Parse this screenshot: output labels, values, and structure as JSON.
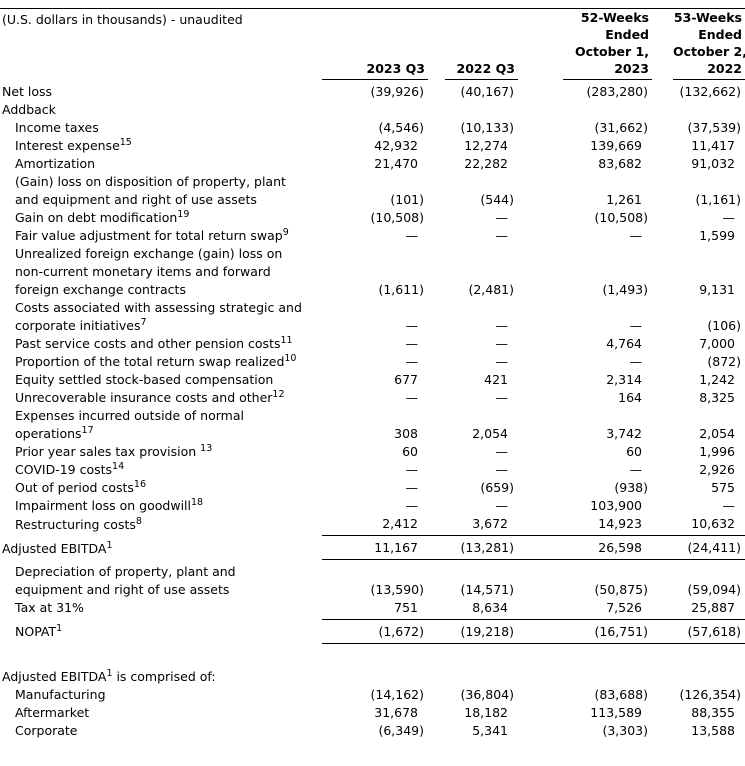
{
  "colors": {
    "background": "#ffffff",
    "text": "#000000",
    "rule": "#000000"
  },
  "table": {
    "unit_note": "(U.S. dollars in thousands) - unaudited",
    "columns": [
      {
        "lines": [
          "2023 Q3"
        ]
      },
      {
        "lines": [
          "2022 Q3"
        ]
      },
      {
        "lines": [
          "52-Weeks",
          "Ended",
          "October 1,",
          "2023"
        ]
      },
      {
        "lines": [
          "53-Weeks",
          "Ended",
          "October 2,",
          "2022"
        ]
      }
    ],
    "rows": [
      {
        "name": "net-loss",
        "indent": 0,
        "label_parts": [
          {
            "t": "Net loss"
          }
        ],
        "values": [
          "(39,926)",
          "(40,167)",
          "(283,280)",
          "(132,662)"
        ]
      },
      {
        "name": "addback",
        "indent": 0,
        "label_parts": [
          {
            "t": "Addback"
          }
        ],
        "values": [
          "",
          "",
          "",
          ""
        ]
      },
      {
        "name": "income-taxes",
        "indent": 1,
        "label_parts": [
          {
            "t": "Income taxes"
          }
        ],
        "values": [
          "(4,546)",
          "(10,133)",
          "(31,662)",
          "(37,539)"
        ]
      },
      {
        "name": "interest-expense",
        "indent": 1,
        "label_parts": [
          {
            "t": "Interest expense"
          },
          {
            "sup": "15"
          }
        ],
        "values": [
          "42,932",
          "12,274",
          "139,669",
          "11,417"
        ]
      },
      {
        "name": "amortization",
        "indent": 1,
        "label_parts": [
          {
            "t": "Amortization"
          }
        ],
        "values": [
          "21,470",
          "22,282",
          "83,682",
          "91,032"
        ]
      },
      {
        "name": "gain-loss-disposition",
        "indent": 1,
        "label_parts": [
          {
            "t": "(Gain) loss on disposition of property, plant"
          },
          {
            "br": true
          },
          {
            "t": "and equipment and right of use assets"
          }
        ],
        "values": [
          "(101)",
          "(544)",
          "1,261",
          "(1,161)"
        ]
      },
      {
        "name": "gain-debt-modification",
        "indent": 1,
        "label_parts": [
          {
            "t": "Gain on debt modification"
          },
          {
            "sup": "19"
          }
        ],
        "values": [
          "(10,508)",
          "—",
          "(10,508)",
          "—"
        ]
      },
      {
        "name": "fair-value-total-return-swap",
        "indent": 1,
        "label_parts": [
          {
            "t": "Fair value adjustment for total return swap"
          },
          {
            "sup": "9"
          }
        ],
        "values": [
          "—",
          "—",
          "—",
          "1,599"
        ]
      },
      {
        "name": "unrealized-fx",
        "indent": 1,
        "label_parts": [
          {
            "t": "Unrealized foreign exchange (gain) loss on"
          },
          {
            "br": true
          },
          {
            "t": "non-current monetary items and forward"
          },
          {
            "br": true
          },
          {
            "t": "foreign exchange contracts"
          }
        ],
        "values": [
          "(1,611)",
          "(2,481)",
          "(1,493)",
          "9,131"
        ]
      },
      {
        "name": "strategic-initiatives-costs",
        "indent": 1,
        "label_parts": [
          {
            "t": "Costs associated with assessing strategic and"
          },
          {
            "br": true
          },
          {
            "t": "corporate initiatives"
          },
          {
            "sup": "7"
          }
        ],
        "values": [
          "—",
          "—",
          "—",
          "(106)"
        ]
      },
      {
        "name": "past-service-pension-costs",
        "indent": 1,
        "label_parts": [
          {
            "t": "Past service costs and other pension costs"
          },
          {
            "sup": "11"
          }
        ],
        "values": [
          "—",
          "—",
          "4,764",
          "7,000"
        ]
      },
      {
        "name": "total-return-swap-realized",
        "indent": 1,
        "label_parts": [
          {
            "t": "Proportion of the total return swap realized"
          },
          {
            "sup": "10"
          }
        ],
        "values": [
          "—",
          "—",
          "—",
          "(872)"
        ]
      },
      {
        "name": "equity-settled-stock-comp",
        "indent": 1,
        "label_parts": [
          {
            "t": "Equity settled stock-based compensation"
          }
        ],
        "values": [
          "677",
          "421",
          "2,314",
          "1,242"
        ]
      },
      {
        "name": "unrecoverable-insurance-costs",
        "indent": 1,
        "label_parts": [
          {
            "t": "Unrecoverable insurance costs and other"
          },
          {
            "sup": "12"
          }
        ],
        "values": [
          "—",
          "—",
          "164",
          "8,325"
        ]
      },
      {
        "name": "expenses-outside-normal-ops",
        "indent": 1,
        "label_parts": [
          {
            "t": "Expenses incurred outside of normal"
          },
          {
            "br": true
          },
          {
            "t": "operations"
          },
          {
            "sup": "17"
          }
        ],
        "values": [
          "308",
          "2,054",
          "3,742",
          "2,054"
        ]
      },
      {
        "name": "prior-year-sales-tax-provision",
        "indent": 1,
        "label_parts": [
          {
            "t": "Prior year sales tax provision "
          },
          {
            "sup": "13"
          }
        ],
        "values": [
          "60",
          "—",
          "60",
          "1,996"
        ]
      },
      {
        "name": "covid-19-costs",
        "indent": 1,
        "label_parts": [
          {
            "t": "COVID-19 costs"
          },
          {
            "sup": "14"
          }
        ],
        "values": [
          "—",
          "—",
          "—",
          "2,926"
        ]
      },
      {
        "name": "out-of-period-costs",
        "indent": 1,
        "label_parts": [
          {
            "t": "Out of period costs"
          },
          {
            "sup": "16"
          }
        ],
        "values": [
          "—",
          "(659)",
          "(938)",
          "575"
        ]
      },
      {
        "name": "impairment-loss-goodwill",
        "indent": 1,
        "label_parts": [
          {
            "t": "Impairment loss on goodwill"
          },
          {
            "sup": "18"
          }
        ],
        "values": [
          "—",
          "—",
          "103,900",
          "—"
        ]
      },
      {
        "name": "restructuring-costs",
        "indent": 1,
        "label_parts": [
          {
            "t": "Restructuring costs"
          },
          {
            "sup": "8"
          }
        ],
        "values": [
          "2,412",
          "3,672",
          "14,923",
          "10,632"
        ],
        "rule_below": true
      },
      {
        "name": "adjusted-ebitda",
        "indent": 0,
        "label_parts": [
          {
            "t": "Adjusted EBITDA"
          },
          {
            "sup": "1"
          }
        ],
        "values": [
          "11,167",
          "(13,281)",
          "26,598",
          "(24,411)"
        ],
        "rule_below": true
      },
      {
        "name": "depreciation",
        "indent": 1,
        "label_parts": [
          {
            "t": "Depreciation of property, plant and"
          },
          {
            "br": true
          },
          {
            "t": "equipment and right of use assets"
          }
        ],
        "values": [
          "(13,590)",
          "(14,571)",
          "(50,875)",
          "(59,094)"
        ]
      },
      {
        "name": "tax-at-31",
        "indent": 1,
        "label_parts": [
          {
            "t": "Tax at 31%"
          }
        ],
        "values": [
          "751",
          "8,634",
          "7,526",
          "25,887"
        ],
        "rule_below": true
      },
      {
        "name": "nopat",
        "indent": 1,
        "label_parts": [
          {
            "t": "NOPAT"
          },
          {
            "sup": "1"
          }
        ],
        "values": [
          "(1,672)",
          "(19,218)",
          "(16,751)",
          "(57,618)"
        ],
        "rule_below": true
      },
      {
        "type": "spacer",
        "height": 24
      },
      {
        "name": "ebitda-composition-heading",
        "indent": 0,
        "label_parts": [
          {
            "t": "Adjusted EBITDA"
          },
          {
            "sup": "1"
          },
          {
            "t": " is comprised of:"
          }
        ],
        "values": [
          "",
          "",
          "",
          ""
        ]
      },
      {
        "name": "manufacturing",
        "indent": 1,
        "label_parts": [
          {
            "t": "Manufacturing"
          }
        ],
        "values": [
          "(14,162)",
          "(36,804)",
          "(83,688)",
          "(126,354)"
        ]
      },
      {
        "name": "aftermarket",
        "indent": 1,
        "label_parts": [
          {
            "t": "Aftermarket"
          }
        ],
        "values": [
          "31,678",
          "18,182",
          "113,589",
          "88,355"
        ]
      },
      {
        "name": "corporate",
        "indent": 1,
        "label_parts": [
          {
            "t": "Corporate"
          }
        ],
        "values": [
          "(6,349)",
          "5,341",
          "(3,303)",
          "13,588"
        ]
      }
    ]
  }
}
